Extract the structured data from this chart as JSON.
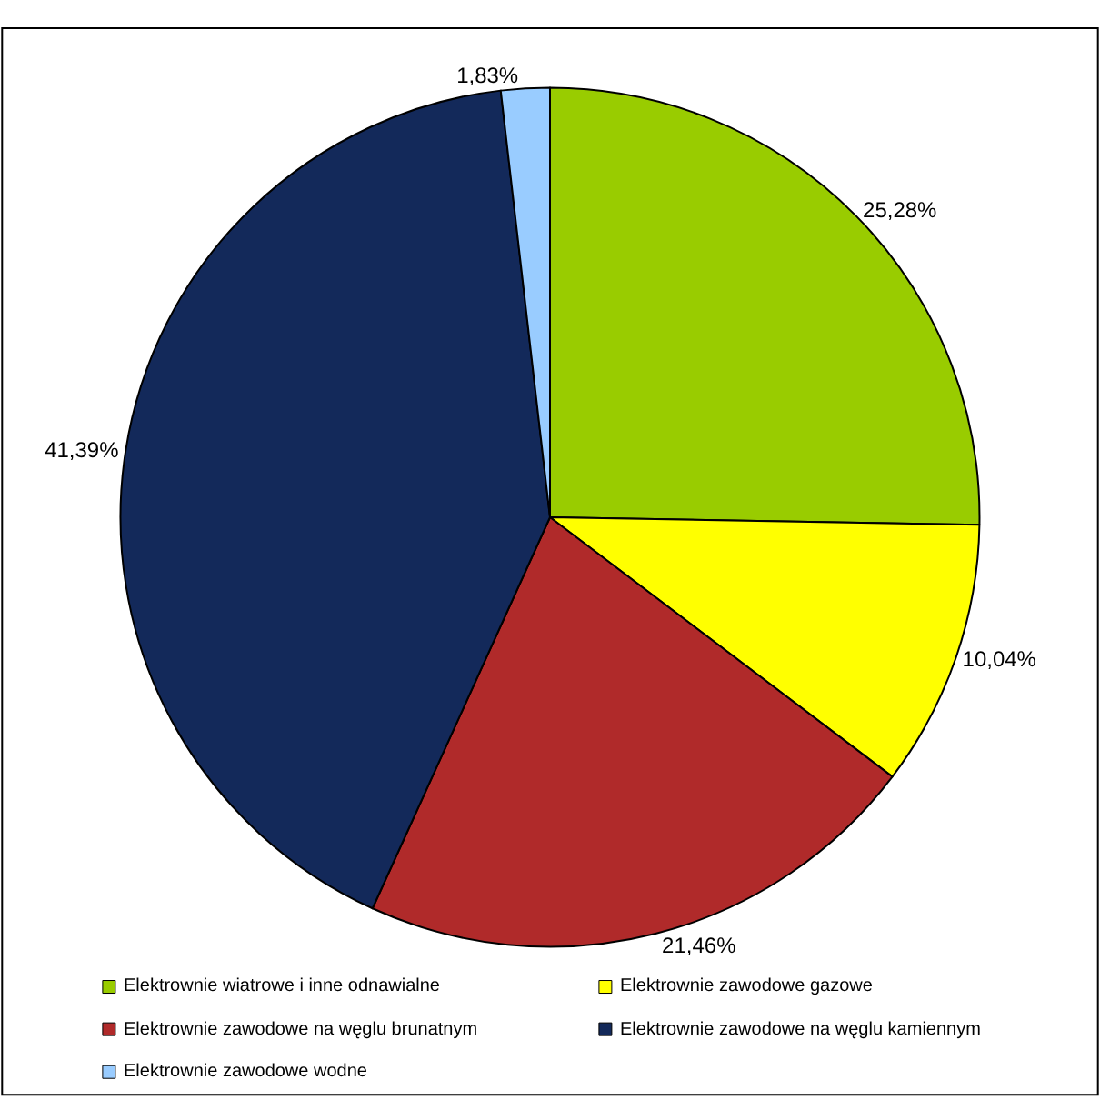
{
  "chart_data": {
    "type": "pie",
    "categories": [
      "Elektrownie wiatrowe i inne odnawialne",
      "Elektrownie zawodowe gazowe",
      "Elektrownie zawodowe na węglu brunatnym",
      "Elektrownie zawodowe na węglu kamiennym",
      "Elektrownie zawodowe wodne"
    ],
    "values": [
      25.28,
      10.04,
      21.46,
      41.39,
      1.83
    ],
    "colors": [
      "#99cc00",
      "#ffff00",
      "#b02a2a",
      "#13295a",
      "#99ccff"
    ],
    "value_labels": [
      "25,28%",
      "10,04%",
      "21,46%",
      "41,39%",
      "1,83%"
    ],
    "legend": "bottom"
  }
}
